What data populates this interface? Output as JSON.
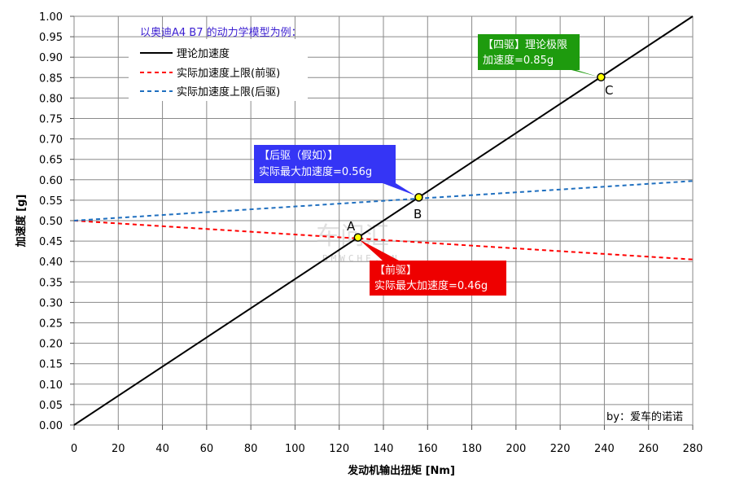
{
  "chart_data": {
    "type": "line",
    "xlabel": "发动机输出扭矩 [Nm]",
    "ylabel": "加速度 [g]",
    "xlim": [
      0,
      280
    ],
    "ylim": [
      0,
      1.0
    ],
    "x_ticks": [
      0,
      20,
      40,
      60,
      80,
      100,
      120,
      140,
      160,
      180,
      200,
      220,
      240,
      260,
      280
    ],
    "x_tick_labels": [
      "0",
      "20",
      "40",
      "60",
      "80",
      "100",
      "120",
      "140",
      "160",
      "180",
      "200",
      "220",
      "240",
      "260",
      "280"
    ],
    "y_ticks": [
      0,
      0.05,
      0.1,
      0.15,
      0.2,
      0.25,
      0.3,
      0.35,
      0.4,
      0.45,
      0.5,
      0.55,
      0.6,
      0.65,
      0.7,
      0.75,
      0.8,
      0.85,
      0.9,
      0.95,
      1.0
    ],
    "y_tick_labels": [
      "0.00",
      "0.05",
      "0.10",
      "0.15",
      "0.20",
      "0.25",
      "0.30",
      "0.35",
      "0.40",
      "0.45",
      "0.50",
      "0.55",
      "0.60",
      "0.65",
      "0.70",
      "0.75",
      "0.80",
      "0.85",
      "0.90",
      "0.95",
      "1.00"
    ],
    "grid": true,
    "legend": {
      "title": "以奥迪A4 B7 的动力学模型为例：",
      "placement": "top-left"
    },
    "series": [
      {
        "name": "理论加速度",
        "color": "#000000",
        "dash": "solid",
        "x": [
          0,
          280
        ],
        "y": [
          0.0,
          1.0
        ]
      },
      {
        "name": "实际加速度上限(前驱)",
        "color": "#ff0000",
        "dash": "dashed",
        "x": [
          0,
          280
        ],
        "y": [
          0.5,
          0.405
        ]
      },
      {
        "name": "实际加速度上限(后驱)",
        "color": "#1f6fbf",
        "dash": "dashed",
        "x": [
          0,
          280
        ],
        "y": [
          0.5,
          0.597
        ]
      }
    ],
    "points": [
      {
        "label": "A",
        "x": 128.5,
        "y": 0.459
      },
      {
        "label": "B",
        "x": 156,
        "y": 0.557
      },
      {
        "label": "C",
        "x": 238.5,
        "y": 0.851
      }
    ],
    "annotations": [
      {
        "target": "C",
        "color": "#1e9b0e",
        "lines": [
          "【四驱】理论极限",
          "加速度=0.85g"
        ]
      },
      {
        "target": "B",
        "color": "#3535f5",
        "lines": [
          "【后驱（假如）】",
          "实际最大加速度=0.56g"
        ]
      },
      {
        "target": "A",
        "color": "#ee0000",
        "lines": [
          "【前驱】",
          "实际最大加速度=0.46g"
        ]
      }
    ],
    "credit": "by：爱车的诺诺",
    "watermark": [
      "车问汇",
      "BMWCHE.CN"
    ]
  }
}
